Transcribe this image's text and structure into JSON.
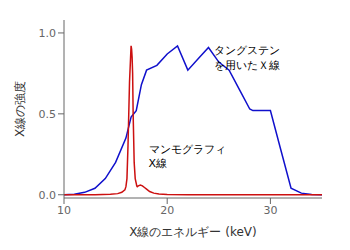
{
  "chart_data": {
    "type": "line",
    "xlabel": "X線のエネルギー (keV)",
    "ylabel": "X線の強度",
    "xlim": [
      10,
      35
    ],
    "ylim": [
      -0.02,
      1.08
    ],
    "xticks": [
      10,
      20,
      30
    ],
    "yticks": [
      {
        "value": 0.0,
        "label": "0.0"
      },
      {
        "value": 0.5,
        "label": "0.5"
      },
      {
        "value": 1.0,
        "label": "1.0"
      }
    ],
    "grid": false,
    "series": [
      {
        "color": "#1010cc",
        "x": [
          10,
          11,
          12,
          13,
          14,
          15,
          16,
          16.5,
          17,
          17.5,
          18,
          19,
          20,
          21,
          22,
          23,
          24,
          25,
          26,
          27,
          28,
          28.3,
          29,
          30,
          31,
          32,
          33,
          34,
          35
        ],
        "values": [
          0.0,
          0.003,
          0.015,
          0.04,
          0.1,
          0.2,
          0.35,
          0.48,
          0.52,
          0.68,
          0.77,
          0.8,
          0.87,
          0.92,
          0.77,
          0.84,
          0.91,
          0.82,
          0.77,
          0.65,
          0.53,
          0.52,
          0.52,
          0.52,
          0.28,
          0.04,
          0.01,
          0.002,
          0.0
        ]
      },
      {
        "color": "#cc1010",
        "x": [
          10,
          13,
          14.5,
          15.2,
          15.6,
          15.9,
          16.0,
          16.1,
          16.2,
          16.35,
          16.5,
          16.55,
          16.6,
          16.65,
          16.7,
          16.8,
          16.9,
          17.0,
          17.05,
          17.1,
          17.2,
          17.4,
          17.6,
          17.8,
          18.0,
          18.3,
          18.7,
          19.2,
          20,
          22,
          35
        ],
        "values": [
          0.0,
          0.0,
          0.003,
          0.007,
          0.015,
          0.03,
          0.05,
          0.1,
          0.3,
          0.7,
          0.92,
          0.9,
          0.85,
          0.75,
          0.5,
          0.2,
          0.1,
          0.07,
          0.055,
          0.05,
          0.055,
          0.06,
          0.055,
          0.045,
          0.035,
          0.02,
          0.01,
          0.005,
          0.002,
          0.0,
          0.0
        ]
      }
    ],
    "annotations": [
      {
        "text": "マンモグラフィ",
        "x": 18.2,
        "y": 0.26
      },
      {
        "text": "X線",
        "x": 18.2,
        "y": 0.17
      },
      {
        "text": "タングステン",
        "x": 24.5,
        "y": 0.87
      },
      {
        "text": "を用いたＸ線",
        "x": 24.5,
        "y": 0.78
      }
    ]
  }
}
